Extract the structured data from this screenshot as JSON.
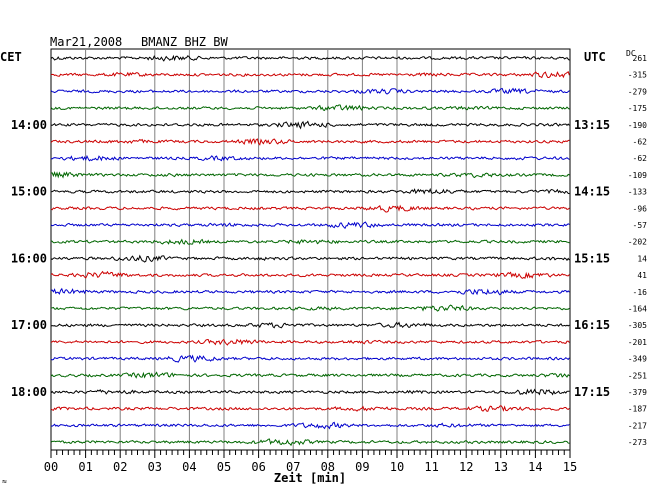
{
  "header": {
    "date": "Mar21,2008",
    "station": "BMANZ BHZ BW"
  },
  "left_zone": "CET",
  "right_zone": "UTC",
  "dc_label": "DC",
  "xlabel": "Zeit [min]",
  "corner_mark": "≈",
  "chart_data": {
    "type": "line",
    "x_ticks": [
      "00",
      "01",
      "02",
      "03",
      "04",
      "05",
      "06",
      "07",
      "08",
      "09",
      "10",
      "11",
      "12",
      "13",
      "14",
      "15"
    ],
    "xlim": [
      0,
      15
    ],
    "grid": true,
    "trace_colors": [
      "#000000",
      "#cc0000",
      "#0000cc",
      "#006600"
    ],
    "left_hour_labels": [
      "14:00",
      "15:00",
      "16:00",
      "17:00",
      "18:00"
    ],
    "right_hour_labels": [
      "13:15",
      "14:15",
      "15:15",
      "16:15",
      "17:15"
    ],
    "dc_offsets": [
      261,
      -315,
      -279,
      -175,
      -190,
      -62,
      -62,
      -109,
      -133,
      -96,
      -57,
      -202,
      14,
      41,
      -16,
      -164,
      -305,
      -201,
      -349,
      -251,
      -379,
      -187,
      -217,
      -273
    ]
  }
}
